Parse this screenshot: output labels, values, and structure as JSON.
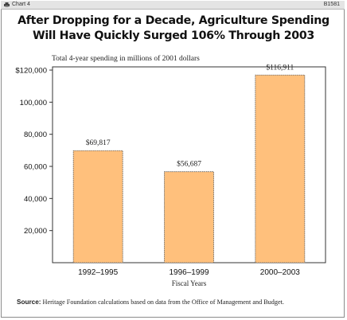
{
  "header": {
    "chart_label": "Chart 4",
    "chart_id": "B1581"
  },
  "colors": {
    "bar_fill": "#FFC07C",
    "bar_stroke": "#555555"
  },
  "source": {
    "label": "Source:",
    "text": "Heritage Foundation calculations based on data from the Office of Management and Budget."
  },
  "chart_data": {
    "type": "bar",
    "title_lines": [
      "After Dropping for a Decade, Agriculture Spending",
      "Will Have Quickly Surged 106% Through 2003"
    ],
    "units_label": "Total 4-year spending in millions of 2001 dollars",
    "xlabel": "Fiscal Years",
    "ylabel": "",
    "categories": [
      "1992–1995",
      "1996–1999",
      "2000–2003"
    ],
    "values": [
      69817,
      56687,
      116911
    ],
    "value_labels": [
      "$69,817",
      "$56,687",
      "$116,911"
    ],
    "ylim": [
      0,
      120000
    ],
    "yticks": [
      20000,
      40000,
      60000,
      80000,
      100000,
      120000
    ],
    "ytick_labels": [
      "20,000",
      "40,000",
      "60,000",
      "80,000",
      "100,000",
      "$120,000"
    ],
    "grid": false,
    "legend": "none"
  }
}
